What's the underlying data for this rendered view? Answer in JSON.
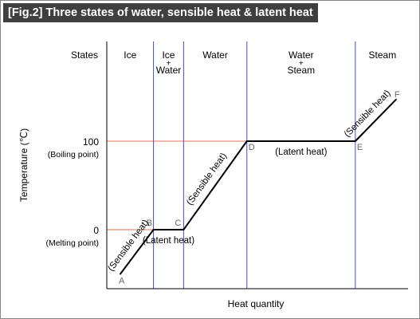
{
  "title": "[Fig.2] Three states of water, sensible heat & latent heat",
  "colors": {
    "phase_line": "#4a4acc",
    "ref_line": "#e8705a",
    "curve": "#000000",
    "point_label": "#666666"
  },
  "chart_data": {
    "type": "line",
    "xlabel": "Heat quantity",
    "ylabel": "Temperature (℃)",
    "ylim": [
      -50,
      150
    ],
    "x_range": [
      0,
      100
    ],
    "grid": false,
    "series": [
      {
        "points": [
          {
            "x": 4.5,
            "y": -50
          },
          {
            "x": 15.5,
            "y": 0
          },
          {
            "x": 25.5,
            "y": 0
          },
          {
            "x": 46.5,
            "y": 100
          },
          {
            "x": 82.5,
            "y": 100
          },
          {
            "x": 96,
            "y": 147
          }
        ]
      }
    ],
    "point_labels": [
      {
        "text": "A",
        "x": 4.5,
        "y": -50
      },
      {
        "text": "B",
        "x": 15.5,
        "y": 0
      },
      {
        "text": "C",
        "x": 25.5,
        "y": 0
      },
      {
        "text": "D",
        "x": 46.5,
        "y": 100
      },
      {
        "text": "E",
        "x": 82.5,
        "y": 100
      },
      {
        "text": "F",
        "x": 96,
        "y": 147
      }
    ],
    "y_ticks": [
      {
        "value": 100,
        "label": "100",
        "sublabel": "(Boiling point)"
      },
      {
        "value": 0,
        "label": "0",
        "sublabel": "(Melting point)"
      }
    ],
    "phase_boundaries_x": [
      15.5,
      25.5,
      46.5,
      82.5
    ],
    "states_header": "States",
    "states": [
      {
        "lines": [
          "Ice"
        ],
        "x": 7.75
      },
      {
        "lines": [
          "Ice",
          "+",
          "Water"
        ],
        "x": 20.5
      },
      {
        "lines": [
          "Water"
        ],
        "x": 36
      },
      {
        "lines": [
          "Water",
          "+",
          "Steam"
        ],
        "x": 64.5
      },
      {
        "lines": [
          "Steam"
        ],
        "x": 91.5
      }
    ],
    "annotations": [
      {
        "text": "(Sensible heat)",
        "segment": 0
      },
      {
        "text": "(Latent heat)",
        "segment": 1
      },
      {
        "text": "(Sensible heat)",
        "segment": 2
      },
      {
        "text": "(Latent heat)",
        "segment": 3
      },
      {
        "text": "(Sensible heat)",
        "segment": 4
      }
    ]
  }
}
